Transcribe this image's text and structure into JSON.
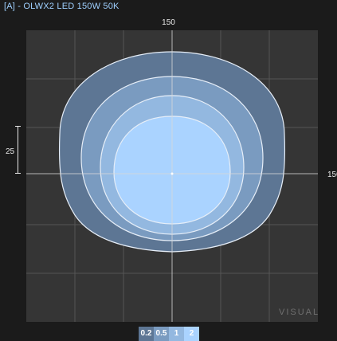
{
  "header": {
    "title": "[A] - OLWX2 LED 150W 50K"
  },
  "dimensions": {
    "top": "150",
    "right": "150",
    "left_scale": "25"
  },
  "watermark": "VISUAL",
  "chart_data": {
    "type": "contour",
    "title": "[A] - OLWX2 LED 150W 50K",
    "levels": [
      {
        "value": "0.2",
        "color": "#5d7694"
      },
      {
        "value": "0.5",
        "color": "#7a9bc0"
      },
      {
        "value": "1",
        "color": "#93b8e0"
      },
      {
        "value": "2",
        "color": "#aad3ff"
      }
    ],
    "grid": true
  }
}
